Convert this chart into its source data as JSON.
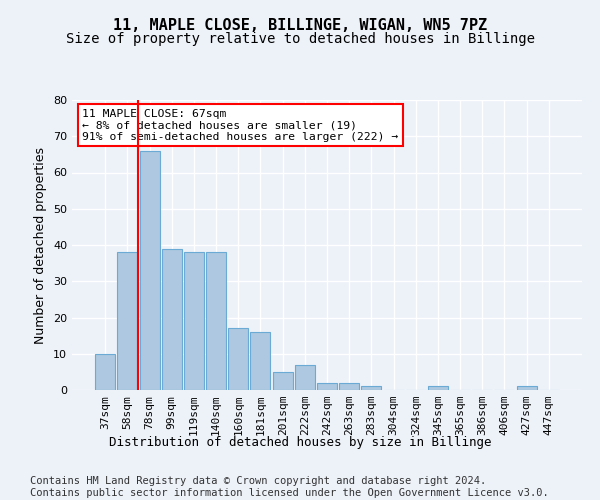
{
  "title": "11, MAPLE CLOSE, BILLINGE, WIGAN, WN5 7PZ",
  "subtitle": "Size of property relative to detached houses in Billinge",
  "xlabel": "Distribution of detached houses by size in Billinge",
  "ylabel": "Number of detached properties",
  "categories": [
    "37sqm",
    "58sqm",
    "78sqm",
    "99sqm",
    "119sqm",
    "140sqm",
    "160sqm",
    "181sqm",
    "201sqm",
    "222sqm",
    "242sqm",
    "263sqm",
    "283sqm",
    "304sqm",
    "324sqm",
    "345sqm",
    "365sqm",
    "386sqm",
    "406sqm",
    "427sqm",
    "447sqm"
  ],
  "values": [
    10,
    38,
    66,
    39,
    38,
    38,
    17,
    16,
    5,
    7,
    2,
    2,
    1,
    0,
    0,
    1,
    0,
    0,
    0,
    1,
    0
  ],
  "bar_color": "#adc8e0",
  "bar_edge_color": "#6aaad4",
  "ylim": [
    0,
    80
  ],
  "yticks": [
    0,
    10,
    20,
    30,
    40,
    50,
    60,
    70,
    80
  ],
  "vline_x": 1.5,
  "vline_color": "#ff0000",
  "annotation_text": "11 MAPLE CLOSE: 67sqm\n← 8% of detached houses are smaller (19)\n91% of semi-detached houses are larger (222) →",
  "footer_line1": "Contains HM Land Registry data © Crown copyright and database right 2024.",
  "footer_line2": "Contains public sector information licensed under the Open Government Licence v3.0.",
  "background_color": "#edf2f9",
  "plot_bg_color": "#edf2f9",
  "grid_color": "#ffffff",
  "title_fontsize": 11,
  "subtitle_fontsize": 10,
  "axis_label_fontsize": 9,
  "tick_fontsize": 8,
  "footer_fontsize": 7.5
}
